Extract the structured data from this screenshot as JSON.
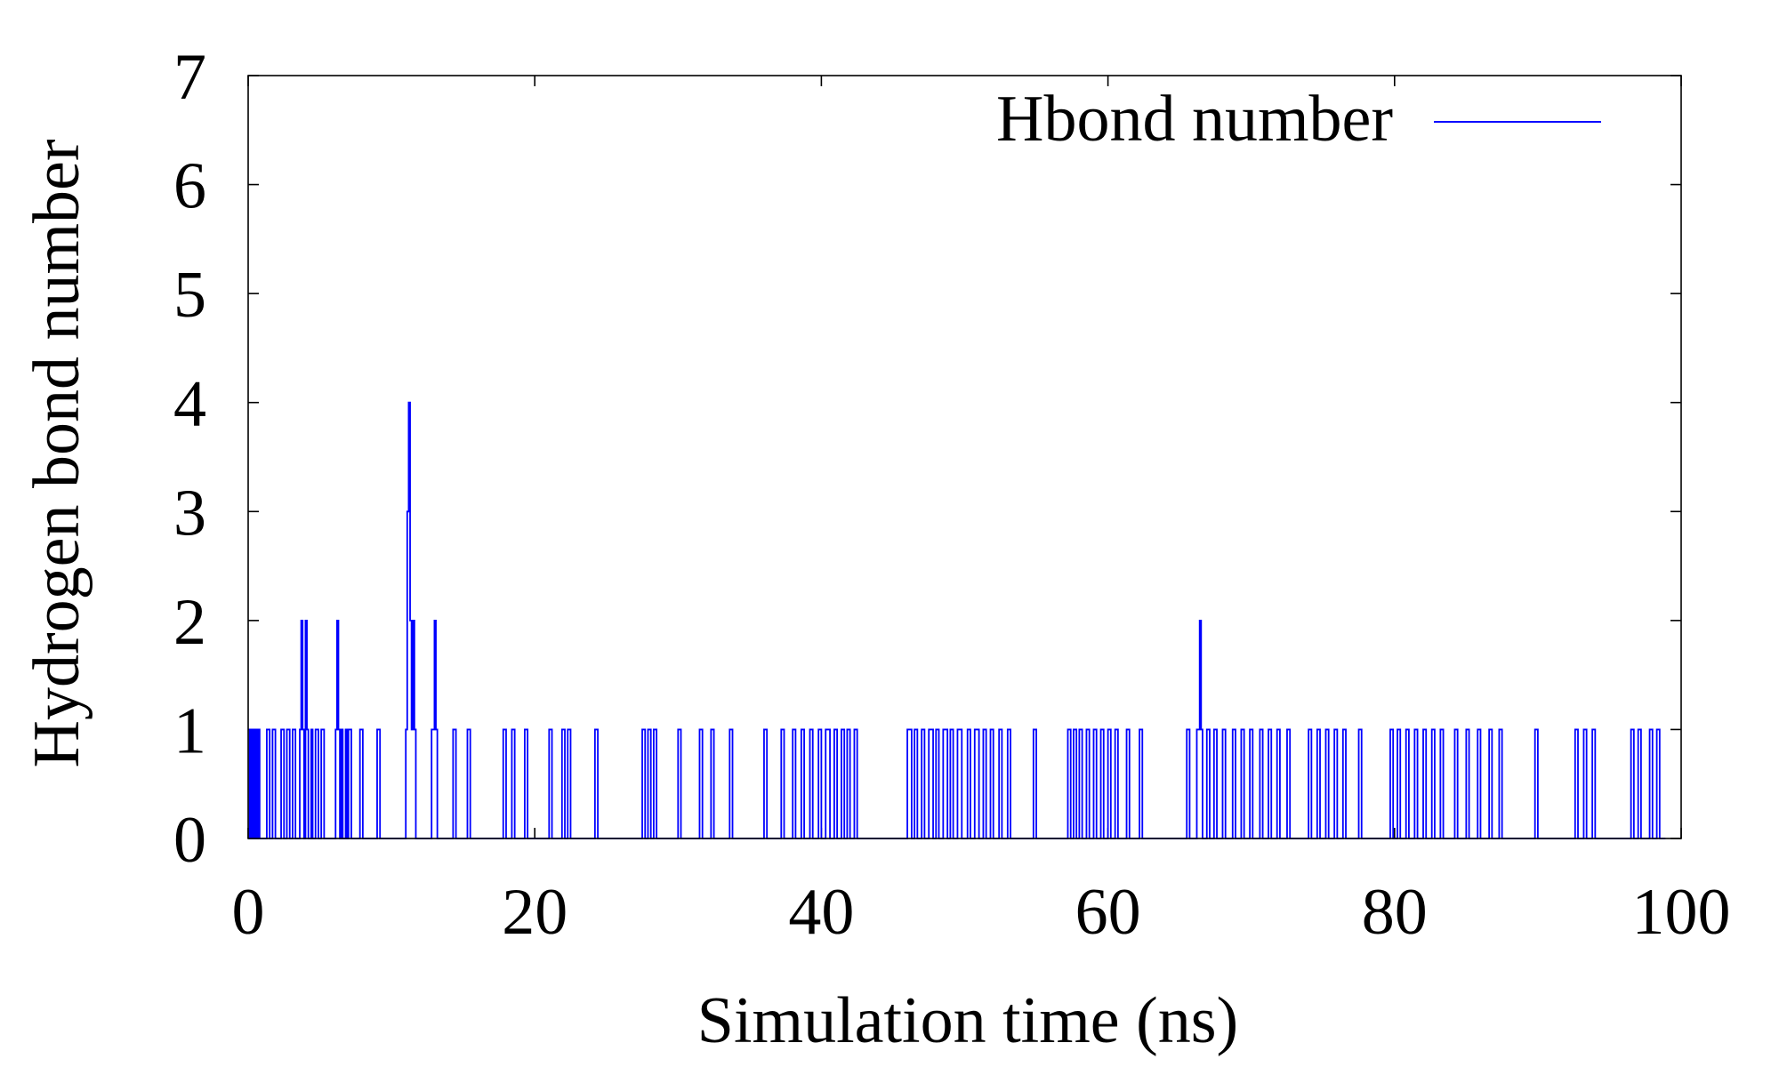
{
  "chart_data": {
    "type": "line",
    "title": "",
    "xlabel": "Simulation time (ns)",
    "ylabel": "Hydrogen bond number",
    "xlim": [
      0,
      100
    ],
    "ylim": [
      0,
      7
    ],
    "xticks": [
      0,
      20,
      40,
      60,
      80,
      100
    ],
    "yticks": [
      0,
      1,
      2,
      3,
      4,
      5,
      6,
      7
    ],
    "xtick_labels": [
      "0",
      "20",
      "40",
      "60",
      "80",
      "100"
    ],
    "ytick_labels": [
      "0",
      "1",
      "2",
      "3",
      "4",
      "5",
      "6",
      "7"
    ],
    "grid": false,
    "legend_position": "top-right",
    "series": [
      {
        "name": "Hbond number",
        "color": "#0000ff",
        "style": "steps",
        "points": [
          [
            0.0,
            0
          ],
          [
            0.1,
            1
          ],
          [
            0.2,
            0
          ],
          [
            0.3,
            1
          ],
          [
            0.4,
            0
          ],
          [
            0.5,
            1
          ],
          [
            0.6,
            0
          ],
          [
            0.7,
            1
          ],
          [
            0.8,
            0
          ],
          [
            1.3,
            1
          ],
          [
            1.5,
            0
          ],
          [
            1.7,
            1
          ],
          [
            1.9,
            0
          ],
          [
            2.3,
            1
          ],
          [
            2.5,
            0
          ],
          [
            2.7,
            1
          ],
          [
            2.9,
            0
          ],
          [
            3.1,
            1
          ],
          [
            3.3,
            0
          ],
          [
            3.6,
            1
          ],
          [
            3.7,
            2
          ],
          [
            3.8,
            1
          ],
          [
            3.9,
            0
          ],
          [
            4.0,
            2
          ],
          [
            4.1,
            1
          ],
          [
            4.2,
            0
          ],
          [
            4.4,
            1
          ],
          [
            4.5,
            0
          ],
          [
            4.7,
            1
          ],
          [
            4.9,
            0
          ],
          [
            5.1,
            1
          ],
          [
            5.3,
            0
          ],
          [
            6.1,
            1
          ],
          [
            6.2,
            2
          ],
          [
            6.3,
            1
          ],
          [
            6.4,
            0
          ],
          [
            6.5,
            1
          ],
          [
            6.6,
            0
          ],
          [
            6.8,
            1
          ],
          [
            6.9,
            0
          ],
          [
            7.0,
            1
          ],
          [
            7.2,
            0
          ],
          [
            7.8,
            1
          ],
          [
            8.0,
            0
          ],
          [
            9.0,
            1
          ],
          [
            9.2,
            0
          ],
          [
            11.0,
            1
          ],
          [
            11.1,
            3
          ],
          [
            11.2,
            4
          ],
          [
            11.3,
            2
          ],
          [
            11.4,
            1
          ],
          [
            11.5,
            2
          ],
          [
            11.6,
            1
          ],
          [
            11.7,
            0
          ],
          [
            12.8,
            1
          ],
          [
            13.0,
            2
          ],
          [
            13.1,
            1
          ],
          [
            13.2,
            0
          ],
          [
            14.3,
            1
          ],
          [
            14.5,
            0
          ],
          [
            15.3,
            1
          ],
          [
            15.5,
            0
          ],
          [
            17.8,
            1
          ],
          [
            18.0,
            0
          ],
          [
            18.4,
            1
          ],
          [
            18.6,
            0
          ],
          [
            19.3,
            1
          ],
          [
            19.5,
            0
          ],
          [
            21.0,
            1
          ],
          [
            21.2,
            0
          ],
          [
            21.9,
            1
          ],
          [
            22.1,
            0
          ],
          [
            22.3,
            1
          ],
          [
            22.5,
            0
          ],
          [
            24.2,
            1
          ],
          [
            24.4,
            0
          ],
          [
            27.5,
            1
          ],
          [
            27.7,
            0
          ],
          [
            27.9,
            1
          ],
          [
            28.1,
            0
          ],
          [
            28.3,
            1
          ],
          [
            28.5,
            0
          ],
          [
            30.0,
            1
          ],
          [
            30.2,
            0
          ],
          [
            31.5,
            1
          ],
          [
            31.7,
            0
          ],
          [
            32.3,
            1
          ],
          [
            32.5,
            0
          ],
          [
            33.6,
            1
          ],
          [
            33.8,
            0
          ],
          [
            36.0,
            1
          ],
          [
            36.2,
            0
          ],
          [
            37.2,
            1
          ],
          [
            37.4,
            0
          ],
          [
            38.0,
            1
          ],
          [
            38.2,
            0
          ],
          [
            38.6,
            1
          ],
          [
            38.8,
            0
          ],
          [
            39.2,
            1
          ],
          [
            39.4,
            0
          ],
          [
            39.8,
            1
          ],
          [
            40.0,
            0
          ],
          [
            40.3,
            1
          ],
          [
            40.6,
            0
          ],
          [
            40.9,
            1
          ],
          [
            41.1,
            0
          ],
          [
            41.4,
            1
          ],
          [
            41.6,
            0
          ],
          [
            41.8,
            1
          ],
          [
            42.0,
            0
          ],
          [
            42.3,
            1
          ],
          [
            42.5,
            0
          ],
          [
            46.0,
            1
          ],
          [
            46.3,
            0
          ],
          [
            46.5,
            1
          ],
          [
            46.7,
            0
          ],
          [
            47.0,
            1
          ],
          [
            47.2,
            0
          ],
          [
            47.5,
            1
          ],
          [
            47.8,
            0
          ],
          [
            48.0,
            1
          ],
          [
            48.2,
            0
          ],
          [
            48.5,
            1
          ],
          [
            48.8,
            0
          ],
          [
            49.0,
            1
          ],
          [
            49.2,
            0
          ],
          [
            49.5,
            1
          ],
          [
            49.8,
            0
          ],
          [
            50.2,
            1
          ],
          [
            50.4,
            0
          ],
          [
            50.7,
            1
          ],
          [
            51.0,
            0
          ],
          [
            51.3,
            1
          ],
          [
            51.5,
            0
          ],
          [
            51.8,
            1
          ],
          [
            52.0,
            0
          ],
          [
            52.4,
            1
          ],
          [
            52.6,
            0
          ],
          [
            53.0,
            1
          ],
          [
            53.2,
            0
          ],
          [
            54.8,
            1
          ],
          [
            55.0,
            0
          ],
          [
            57.2,
            1
          ],
          [
            57.4,
            0
          ],
          [
            57.6,
            1
          ],
          [
            57.8,
            0
          ],
          [
            58.0,
            1
          ],
          [
            58.2,
            0
          ],
          [
            58.5,
            1
          ],
          [
            58.7,
            0
          ],
          [
            59.0,
            1
          ],
          [
            59.2,
            0
          ],
          [
            59.5,
            1
          ],
          [
            59.7,
            0
          ],
          [
            60.0,
            1
          ],
          [
            60.2,
            0
          ],
          [
            60.5,
            1
          ],
          [
            60.7,
            0
          ],
          [
            61.3,
            1
          ],
          [
            61.5,
            0
          ],
          [
            62.2,
            1
          ],
          [
            62.4,
            0
          ],
          [
            65.5,
            1
          ],
          [
            65.7,
            0
          ],
          [
            66.2,
            1
          ],
          [
            66.4,
            2
          ],
          [
            66.5,
            1
          ],
          [
            66.6,
            0
          ],
          [
            66.9,
            1
          ],
          [
            67.1,
            0
          ],
          [
            67.4,
            1
          ],
          [
            67.6,
            0
          ],
          [
            68.0,
            1
          ],
          [
            68.2,
            0
          ],
          [
            68.7,
            1
          ],
          [
            68.9,
            0
          ],
          [
            69.3,
            1
          ],
          [
            69.5,
            0
          ],
          [
            69.9,
            1
          ],
          [
            70.1,
            0
          ],
          [
            70.6,
            1
          ],
          [
            70.8,
            0
          ],
          [
            71.2,
            1
          ],
          [
            71.4,
            0
          ],
          [
            71.8,
            1
          ],
          [
            72.0,
            0
          ],
          [
            72.5,
            1
          ],
          [
            72.7,
            0
          ],
          [
            74.0,
            1
          ],
          [
            74.2,
            0
          ],
          [
            74.6,
            1
          ],
          [
            74.8,
            0
          ],
          [
            75.2,
            1
          ],
          [
            75.4,
            0
          ],
          [
            75.8,
            1
          ],
          [
            76.0,
            0
          ],
          [
            76.4,
            1
          ],
          [
            76.6,
            0
          ],
          [
            77.5,
            1
          ],
          [
            77.7,
            0
          ],
          [
            79.7,
            1
          ],
          [
            79.9,
            0
          ],
          [
            80.2,
            1
          ],
          [
            80.4,
            0
          ],
          [
            80.8,
            1
          ],
          [
            81.0,
            0
          ],
          [
            81.4,
            1
          ],
          [
            81.6,
            0
          ],
          [
            82.0,
            1
          ],
          [
            82.2,
            0
          ],
          [
            82.6,
            1
          ],
          [
            82.8,
            0
          ],
          [
            83.2,
            1
          ],
          [
            83.4,
            0
          ],
          [
            84.2,
            1
          ],
          [
            84.4,
            0
          ],
          [
            85.0,
            1
          ],
          [
            85.2,
            0
          ],
          [
            85.8,
            1
          ],
          [
            86.0,
            0
          ],
          [
            86.6,
            1
          ],
          [
            86.8,
            0
          ],
          [
            87.3,
            1
          ],
          [
            87.5,
            0
          ],
          [
            89.8,
            1
          ],
          [
            90.0,
            0
          ],
          [
            92.6,
            1
          ],
          [
            92.8,
            0
          ],
          [
            93.2,
            1
          ],
          [
            93.4,
            0
          ],
          [
            93.8,
            1
          ],
          [
            94.0,
            0
          ],
          [
            96.5,
            1
          ],
          [
            96.7,
            0
          ],
          [
            97.0,
            1
          ],
          [
            97.2,
            0
          ],
          [
            97.8,
            1
          ],
          [
            98.0,
            0
          ],
          [
            98.3,
            1
          ],
          [
            98.5,
            0
          ],
          [
            98.9,
            0
          ]
        ]
      }
    ]
  }
}
